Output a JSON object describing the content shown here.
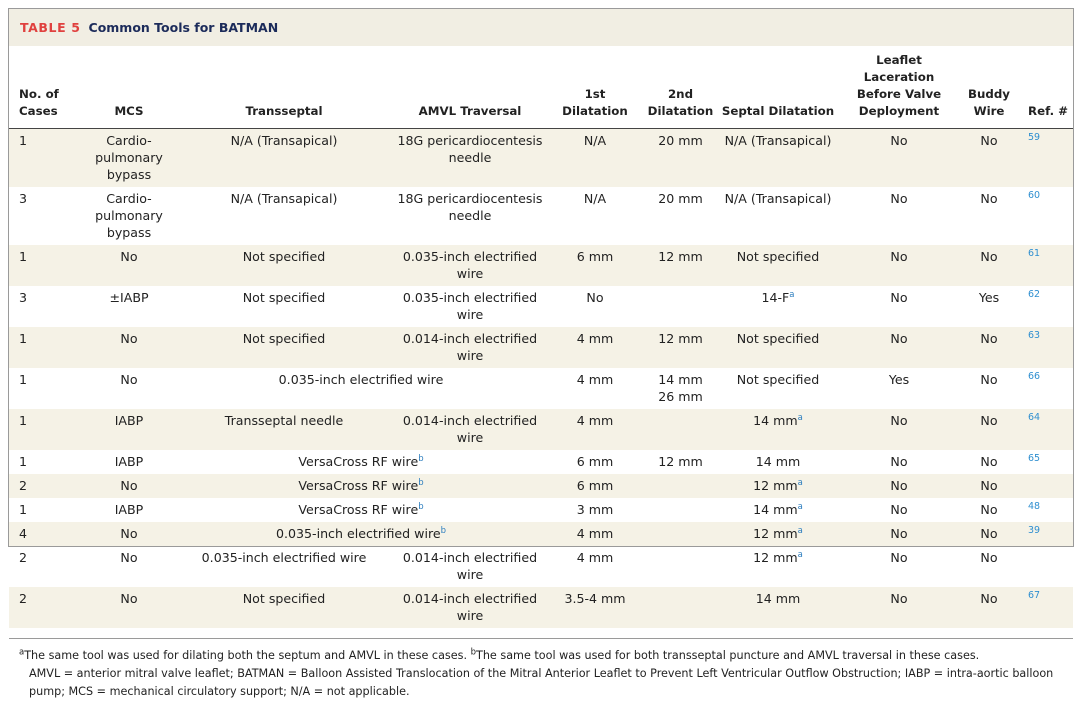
{
  "header": {
    "label": "TABLE 5",
    "title": "Common Tools for BATMAN"
  },
  "table": {
    "columns": [
      "No. of Cases",
      "MCS",
      "Transseptal",
      "AMVL Traversal",
      "1st Dilatation",
      "2nd Dilatation",
      "Septal Dilatation",
      "Leaflet Laceration Before Valve Deployment",
      "Buddy Wire",
      "Ref. #"
    ],
    "rows": [
      {
        "cases": 1,
        "mcs": "Cardio-pulmonary bypass",
        "transseptal": "N/A (Transapical)",
        "amvl": "18G pericardiocentesis needle",
        "d1": "N/A",
        "d2": "20 mm",
        "septal": "N/A (Transapical)",
        "leaflet": "No",
        "buddy": "No",
        "ref": 59
      },
      {
        "cases": 3,
        "mcs": "Cardio-pulmonary bypass",
        "transseptal": "N/A (Transapical)",
        "amvl": "18G pericardiocentesis needle",
        "d1": "N/A",
        "d2": "20 mm",
        "septal": "N/A (Transapical)",
        "leaflet": "No",
        "buddy": "No",
        "ref": 60
      },
      {
        "cases": 1,
        "mcs": "No",
        "transseptal": "Not specified",
        "amvl": "0.035-inch electrified wire",
        "d1": "6 mm",
        "d2": "12 mm",
        "septal": "Not specified",
        "leaflet": "No",
        "buddy": "No",
        "ref": 61
      },
      {
        "cases": 3,
        "mcs": "±IABP",
        "transseptal": "Not specified",
        "amvl": "0.035-inch electrified wire",
        "d1": "No",
        "septal": {
          "text": "14-F",
          "note": "a"
        },
        "leaflet": "No",
        "buddy": "Yes",
        "ref": 62
      },
      {
        "cases": 1,
        "mcs": "No",
        "transseptal": "Not specified",
        "amvl": "0.014-inch electrified wire",
        "d1": "4 mm",
        "d2": "12 mm",
        "septal": "Not specified",
        "leaflet": "No",
        "buddy": "No",
        "ref": 63
      },
      {
        "cases": 1,
        "mcs": "No",
        "transseptal_amvl": "0.035-inch electrified wire",
        "d1": "4 mm",
        "d2": [
          "14 mm",
          "26 mm"
        ],
        "septal": "Not specified",
        "leaflet": "Yes",
        "buddy": "No",
        "ref": 66
      },
      {
        "cases": 1,
        "mcs": "IABP",
        "transseptal": "Transseptal needle",
        "amvl": "0.014-inch electrified wire",
        "d1": "4 mm",
        "septal": {
          "text": "14 mm",
          "note": "a"
        },
        "leaflet": "No",
        "buddy": "No",
        "ref": 64
      },
      {
        "cases": 1,
        "mcs": "IABP",
        "transseptal_amvl": {
          "text": "VersaCross RF wire",
          "note": "b"
        },
        "d1": "6 mm",
        "d2": "12 mm",
        "septal": "14 mm",
        "leaflet": "No",
        "buddy": "No",
        "ref": 65
      },
      {
        "cases": 2,
        "mcs": "No",
        "transseptal_amvl": {
          "text": "VersaCross RF wire",
          "note": "b"
        },
        "d1": "6 mm",
        "septal": {
          "text": "12 mm",
          "note": "a"
        },
        "leaflet": "No",
        "buddy": "No"
      },
      {
        "cases": 1,
        "mcs": "IABP",
        "transseptal_amvl": {
          "text": "VersaCross RF wire",
          "note": "b"
        },
        "d1": "3 mm",
        "septal": {
          "text": "14 mm",
          "note": "a"
        },
        "leaflet": "No",
        "buddy": "No",
        "ref": 48
      },
      {
        "cases": 4,
        "mcs": "No",
        "transseptal_amvl": {
          "text": "0.035-inch electrified wire",
          "note": "b"
        },
        "d1": "4 mm",
        "septal": {
          "text": "12 mm",
          "note": "a"
        },
        "leaflet": "No",
        "buddy": "No",
        "ref": 39
      },
      {
        "cases": 2,
        "mcs": "No",
        "transseptal": "0.035-inch electrified wire",
        "amvl": "0.014-inch electrified wire",
        "d1": "4 mm",
        "septal": {
          "text": "12 mm",
          "note": "a"
        },
        "leaflet": "No",
        "buddy": "No"
      },
      {
        "cases": 2,
        "mcs": "No",
        "transseptal": "Not specified",
        "amvl": "0.014-inch electrified wire",
        "d1": "3.5-4 mm",
        "septal": "14 mm",
        "leaflet": "No",
        "buddy": "No",
        "ref": 67
      }
    ]
  },
  "footnotes": [
    {
      "mark": "a",
      "text": "The same tool was used for dilating both the septum and AMVL in these cases."
    },
    {
      "mark": "b",
      "text": "The same tool was used for both transseptal puncture and AMVL traversal in these cases."
    }
  ],
  "abbreviations": "AMVL = anterior mitral valve leaflet; BATMAN = Balloon Assisted Translocation of the Mitral Anterior Leaflet to Prevent Left Ventricular Outflow Obstruction; IABP = intra-aortic balloon pump; MCS = mechanical circulatory support; N/A = not applicable."
}
